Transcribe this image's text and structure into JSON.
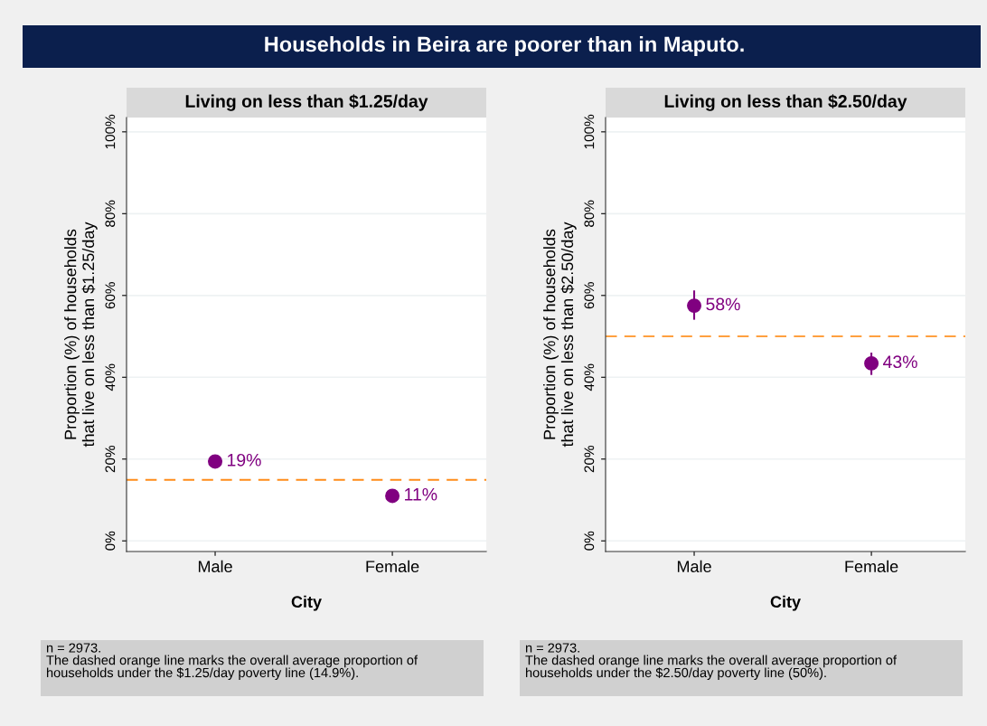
{
  "chart_data": [
    {
      "type": "scatter",
      "title": "Households in Beira are poorer than in Maputo.",
      "subtitle": "Living on less than $1.25/day",
      "xlabel": "City",
      "ylabel": "Proportion (%) of households\nthat live on less than $1.25/day",
      "categories": [
        "Male",
        "Female"
      ],
      "series": [
        {
          "color": "#800080",
          "values": [
            19.4,
            11.0
          ],
          "value_labels": [
            "19%",
            "11%"
          ]
        }
      ],
      "marker": "circle",
      "ylim": [
        -2.6,
        103.5
      ],
      "yticks": [
        {
          "value": 0,
          "label": "0%"
        },
        {
          "value": 20,
          "label": "20%"
        },
        {
          "value": 40,
          "label": "40%"
        },
        {
          "value": 60,
          "label": "60%"
        },
        {
          "value": 80,
          "label": "80%"
        },
        {
          "value": 100,
          "label": "100%"
        }
      ],
      "grid": "y",
      "ref_lines": [
        {
          "axis": "y",
          "value": 14.9,
          "color": "#ff8c1a",
          "line_style": "dashed"
        }
      ],
      "annotations": [
        "n = 2973.\nThe dashed orange line marks the overall average proportion of\nhouseholds under the $1.25/day poverty line (14.9%)."
      ]
    },
    {
      "type": "scatter",
      "subtitle": "Living on less than $2.50/day",
      "xlabel": "City",
      "ylabel": "Proportion (%) of households\nthat live on less than $2.50/day",
      "categories": [
        "Male",
        "Female"
      ],
      "series": [
        {
          "color": "#800080",
          "values": [
            57.5,
            43.4
          ],
          "errors": [
            [
              54.3,
              61.0
            ],
            [
              40.8,
              45.8
            ]
          ],
          "value_labels": [
            "58%",
            "43%"
          ]
        }
      ],
      "marker": "circle",
      "ylim": [
        -2.6,
        103.5
      ],
      "yticks": [
        {
          "value": 0,
          "label": "0%"
        },
        {
          "value": 20,
          "label": "20%"
        },
        {
          "value": 40,
          "label": "40%"
        },
        {
          "value": 60,
          "label": "60%"
        },
        {
          "value": 80,
          "label": "80%"
        },
        {
          "value": 100,
          "label": "100%"
        }
      ],
      "grid": "y",
      "ref_lines": [
        {
          "axis": "y",
          "value": 50,
          "color": "#ffa040",
          "line_style": "dashed"
        }
      ],
      "annotations": [
        "n = 2973.\nThe dashed orange line marks the overall average proportion of\nhouseholds under the $2.50/day poverty line (50%)."
      ]
    }
  ]
}
